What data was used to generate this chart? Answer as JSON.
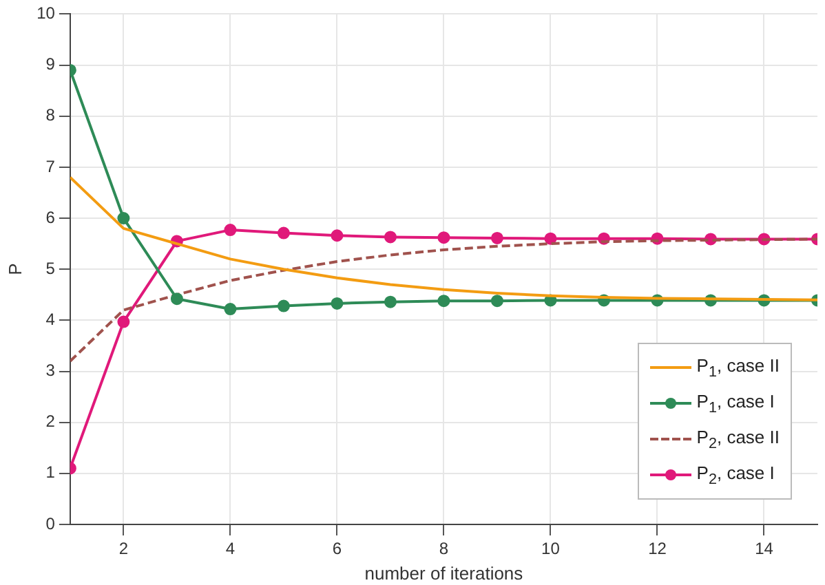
{
  "chart_data": {
    "type": "line",
    "xlabel": "number of iterations",
    "ylabel": "P",
    "x": [
      1,
      2,
      3,
      4,
      5,
      6,
      7,
      8,
      9,
      10,
      11,
      12,
      13,
      14,
      15
    ],
    "xlim": [
      1,
      15
    ],
    "xticks": [
      2,
      4,
      6,
      8,
      10,
      12,
      14
    ],
    "ylim": [
      0,
      10
    ],
    "yticks": [
      0,
      1,
      2,
      3,
      4,
      5,
      6,
      7,
      8,
      9,
      10
    ],
    "grid": true,
    "legend": "bottom right",
    "series": [
      {
        "name": "P$_{1}$, case II",
        "color": "#f39c12",
        "marker": "none",
        "line_style": "solid",
        "values": [
          6.8,
          5.8,
          5.5,
          5.2,
          5.0,
          4.83,
          4.7,
          4.6,
          4.53,
          4.48,
          4.45,
          4.43,
          4.42,
          4.41,
          4.4
        ]
      },
      {
        "name": "P$_{1}$, case I",
        "color": "#2e8b57",
        "marker": "circle",
        "line_style": "solid",
        "values": [
          8.9,
          6.0,
          4.42,
          4.22,
          4.28,
          4.33,
          4.36,
          4.38,
          4.38,
          4.39,
          4.39,
          4.39,
          4.39,
          4.39,
          4.39
        ]
      },
      {
        "name": "P$_{2}$, case II",
        "color": "#a0524d",
        "marker": "none",
        "line_style": "dashed",
        "values": [
          3.2,
          4.2,
          4.5,
          4.78,
          4.98,
          5.15,
          5.28,
          5.38,
          5.45,
          5.5,
          5.54,
          5.56,
          5.57,
          5.58,
          5.59
        ]
      },
      {
        "name": "P$_{2}$, case I",
        "color": "#e0197a",
        "marker": "circle",
        "line_style": "solid",
        "values": [
          1.1,
          3.97,
          5.55,
          5.77,
          5.71,
          5.66,
          5.63,
          5.62,
          5.61,
          5.6,
          5.6,
          5.6,
          5.59,
          5.59,
          5.59
        ]
      }
    ]
  }
}
